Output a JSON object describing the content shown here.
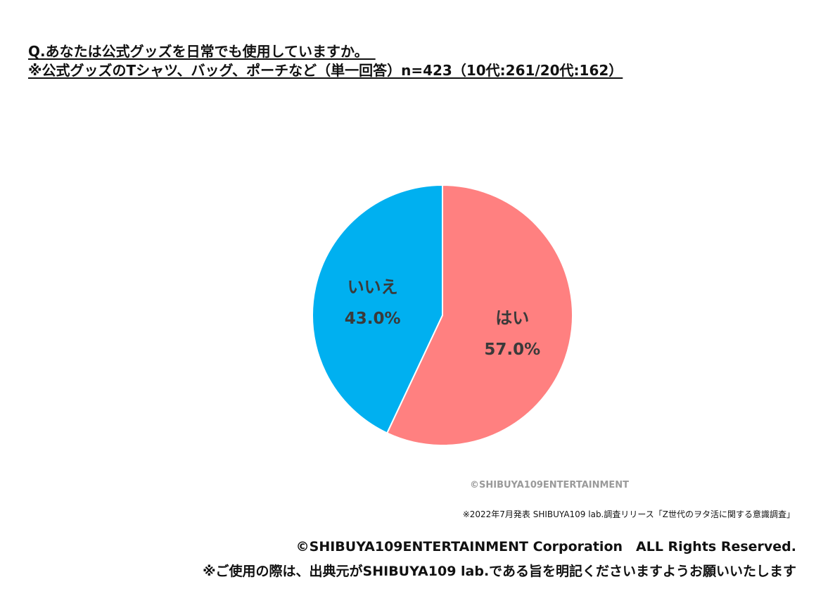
{
  "header": {
    "question": "Q.あなたは公式グッズを日常でも使用していますか。_",
    "note": "※公式グッズのTシャツ、バッグ、ポーチなど（単一回答）n=423（10代:261/20代:162）"
  },
  "chart_data": {
    "type": "pie",
    "slices": [
      {
        "label": "はい",
        "value": 57.0,
        "value_label": "57.0%",
        "color": "#ff8080"
      },
      {
        "label": "いいえ",
        "value": 43.0,
        "value_label": "43.0%",
        "color": "#00b0f0"
      }
    ],
    "start": "12 o'clock",
    "direction": "clockwise"
  },
  "watermark": "©SHIBUYA109ENTERTAINMENT",
  "footer": {
    "source": "※2022年7月発表 SHIBUYA109 lab.調査リリース「Z世代のヲタ活に関する意識調査」",
    "copyright": "©SHIBUYA109ENTERTAINMENT Corporation　ALL Rights Reserved.",
    "usage": "※ご使用の際は、出典元がSHIBUYA109 lab.である旨を明記くださいますようお願いいたします"
  }
}
